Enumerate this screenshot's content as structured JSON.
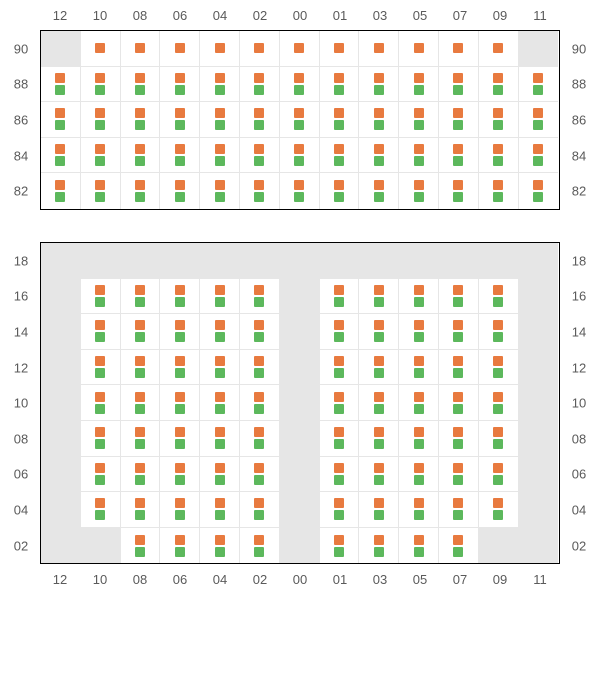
{
  "colors": {
    "orange": "#e87a3f",
    "green": "#5cb85c",
    "gray": "#e6e6e6",
    "white": "#ffffff",
    "label": "#5a5a5a"
  },
  "columnLabels": [
    "12",
    "10",
    "08",
    "06",
    "04",
    "02",
    "00",
    "01",
    "03",
    "05",
    "07",
    "09",
    "11"
  ],
  "topBlock": {
    "rowLabels": [
      "90",
      "88",
      "86",
      "84",
      "82"
    ],
    "rows": [
      [
        {
          "t": "g"
        },
        {
          "t": "w",
          "d": [
            1
          ]
        },
        {
          "t": "w",
          "d": [
            1
          ]
        },
        {
          "t": "w",
          "d": [
            1
          ]
        },
        {
          "t": "w",
          "d": [
            1
          ]
        },
        {
          "t": "w",
          "d": [
            1
          ]
        },
        {
          "t": "w",
          "d": [
            1
          ]
        },
        {
          "t": "w",
          "d": [
            1
          ]
        },
        {
          "t": "w",
          "d": [
            1
          ]
        },
        {
          "t": "w",
          "d": [
            1
          ]
        },
        {
          "t": "w",
          "d": [
            1
          ]
        },
        {
          "t": "w",
          "d": [
            1
          ]
        },
        {
          "t": "g"
        }
      ],
      [
        {
          "t": "w",
          "d": [
            1,
            2
          ]
        },
        {
          "t": "w",
          "d": [
            1,
            2
          ]
        },
        {
          "t": "w",
          "d": [
            1,
            2
          ]
        },
        {
          "t": "w",
          "d": [
            1,
            2
          ]
        },
        {
          "t": "w",
          "d": [
            1,
            2
          ]
        },
        {
          "t": "w",
          "d": [
            1,
            2
          ]
        },
        {
          "t": "w",
          "d": [
            1,
            2
          ]
        },
        {
          "t": "w",
          "d": [
            1,
            2
          ]
        },
        {
          "t": "w",
          "d": [
            1,
            2
          ]
        },
        {
          "t": "w",
          "d": [
            1,
            2
          ]
        },
        {
          "t": "w",
          "d": [
            1,
            2
          ]
        },
        {
          "t": "w",
          "d": [
            1,
            2
          ]
        },
        {
          "t": "w",
          "d": [
            1,
            2
          ]
        }
      ],
      [
        {
          "t": "w",
          "d": [
            1,
            2
          ]
        },
        {
          "t": "w",
          "d": [
            1,
            2
          ]
        },
        {
          "t": "w",
          "d": [
            1,
            2
          ]
        },
        {
          "t": "w",
          "d": [
            1,
            2
          ]
        },
        {
          "t": "w",
          "d": [
            1,
            2
          ]
        },
        {
          "t": "w",
          "d": [
            1,
            2
          ]
        },
        {
          "t": "w",
          "d": [
            1,
            2
          ]
        },
        {
          "t": "w",
          "d": [
            1,
            2
          ]
        },
        {
          "t": "w",
          "d": [
            1,
            2
          ]
        },
        {
          "t": "w",
          "d": [
            1,
            2
          ]
        },
        {
          "t": "w",
          "d": [
            1,
            2
          ]
        },
        {
          "t": "w",
          "d": [
            1,
            2
          ]
        },
        {
          "t": "w",
          "d": [
            1,
            2
          ]
        }
      ],
      [
        {
          "t": "w",
          "d": [
            1,
            2
          ]
        },
        {
          "t": "w",
          "d": [
            1,
            2
          ]
        },
        {
          "t": "w",
          "d": [
            1,
            2
          ]
        },
        {
          "t": "w",
          "d": [
            1,
            2
          ]
        },
        {
          "t": "w",
          "d": [
            1,
            2
          ]
        },
        {
          "t": "w",
          "d": [
            1,
            2
          ]
        },
        {
          "t": "w",
          "d": [
            1,
            2
          ]
        },
        {
          "t": "w",
          "d": [
            1,
            2
          ]
        },
        {
          "t": "w",
          "d": [
            1,
            2
          ]
        },
        {
          "t": "w",
          "d": [
            1,
            2
          ]
        },
        {
          "t": "w",
          "d": [
            1,
            2
          ]
        },
        {
          "t": "w",
          "d": [
            1,
            2
          ]
        },
        {
          "t": "w",
          "d": [
            1,
            2
          ]
        }
      ],
      [
        {
          "t": "w",
          "d": [
            1,
            2
          ]
        },
        {
          "t": "w",
          "d": [
            1,
            2
          ]
        },
        {
          "t": "w",
          "d": [
            1,
            2
          ]
        },
        {
          "t": "w",
          "d": [
            1,
            2
          ]
        },
        {
          "t": "w",
          "d": [
            1,
            2
          ]
        },
        {
          "t": "w",
          "d": [
            1,
            2
          ]
        },
        {
          "t": "w",
          "d": [
            1,
            2
          ]
        },
        {
          "t": "w",
          "d": [
            1,
            2
          ]
        },
        {
          "t": "w",
          "d": [
            1,
            2
          ]
        },
        {
          "t": "w",
          "d": [
            1,
            2
          ]
        },
        {
          "t": "w",
          "d": [
            1,
            2
          ]
        },
        {
          "t": "w",
          "d": [
            1,
            2
          ]
        },
        {
          "t": "w",
          "d": [
            1,
            2
          ]
        }
      ]
    ]
  },
  "bottomBlock": {
    "rowLabels": [
      "18",
      "16",
      "14",
      "12",
      "10",
      "08",
      "06",
      "04",
      "02"
    ],
    "rows": [
      [
        {
          "t": "g"
        },
        {
          "t": "g"
        },
        {
          "t": "g"
        },
        {
          "t": "g"
        },
        {
          "t": "g"
        },
        {
          "t": "g"
        },
        {
          "t": "g"
        },
        {
          "t": "g"
        },
        {
          "t": "g"
        },
        {
          "t": "g"
        },
        {
          "t": "g"
        },
        {
          "t": "g"
        },
        {
          "t": "g"
        }
      ],
      [
        {
          "t": "g"
        },
        {
          "t": "w",
          "d": [
            1,
            2
          ]
        },
        {
          "t": "w",
          "d": [
            1,
            2
          ]
        },
        {
          "t": "w",
          "d": [
            1,
            2
          ]
        },
        {
          "t": "w",
          "d": [
            1,
            2
          ]
        },
        {
          "t": "w",
          "d": [
            1,
            2
          ]
        },
        {
          "t": "g"
        },
        {
          "t": "w",
          "d": [
            1,
            2
          ]
        },
        {
          "t": "w",
          "d": [
            1,
            2
          ]
        },
        {
          "t": "w",
          "d": [
            1,
            2
          ]
        },
        {
          "t": "w",
          "d": [
            1,
            2
          ]
        },
        {
          "t": "w",
          "d": [
            1,
            2
          ]
        },
        {
          "t": "g"
        }
      ],
      [
        {
          "t": "g"
        },
        {
          "t": "w",
          "d": [
            1,
            2
          ]
        },
        {
          "t": "w",
          "d": [
            1,
            2
          ]
        },
        {
          "t": "w",
          "d": [
            1,
            2
          ]
        },
        {
          "t": "w",
          "d": [
            1,
            2
          ]
        },
        {
          "t": "w",
          "d": [
            1,
            2
          ]
        },
        {
          "t": "g"
        },
        {
          "t": "w",
          "d": [
            1,
            2
          ]
        },
        {
          "t": "w",
          "d": [
            1,
            2
          ]
        },
        {
          "t": "w",
          "d": [
            1,
            2
          ]
        },
        {
          "t": "w",
          "d": [
            1,
            2
          ]
        },
        {
          "t": "w",
          "d": [
            1,
            2
          ]
        },
        {
          "t": "g"
        }
      ],
      [
        {
          "t": "g"
        },
        {
          "t": "w",
          "d": [
            1,
            2
          ]
        },
        {
          "t": "w",
          "d": [
            1,
            2
          ]
        },
        {
          "t": "w",
          "d": [
            1,
            2
          ]
        },
        {
          "t": "w",
          "d": [
            1,
            2
          ]
        },
        {
          "t": "w",
          "d": [
            1,
            2
          ]
        },
        {
          "t": "g"
        },
        {
          "t": "w",
          "d": [
            1,
            2
          ]
        },
        {
          "t": "w",
          "d": [
            1,
            2
          ]
        },
        {
          "t": "w",
          "d": [
            1,
            2
          ]
        },
        {
          "t": "w",
          "d": [
            1,
            2
          ]
        },
        {
          "t": "w",
          "d": [
            1,
            2
          ]
        },
        {
          "t": "g"
        }
      ],
      [
        {
          "t": "g"
        },
        {
          "t": "w",
          "d": [
            1,
            2
          ]
        },
        {
          "t": "w",
          "d": [
            1,
            2
          ]
        },
        {
          "t": "w",
          "d": [
            1,
            2
          ]
        },
        {
          "t": "w",
          "d": [
            1,
            2
          ]
        },
        {
          "t": "w",
          "d": [
            1,
            2
          ]
        },
        {
          "t": "g"
        },
        {
          "t": "w",
          "d": [
            1,
            2
          ]
        },
        {
          "t": "w",
          "d": [
            1,
            2
          ]
        },
        {
          "t": "w",
          "d": [
            1,
            2
          ]
        },
        {
          "t": "w",
          "d": [
            1,
            2
          ]
        },
        {
          "t": "w",
          "d": [
            1,
            2
          ]
        },
        {
          "t": "g"
        }
      ],
      [
        {
          "t": "g"
        },
        {
          "t": "w",
          "d": [
            1,
            2
          ]
        },
        {
          "t": "w",
          "d": [
            1,
            2
          ]
        },
        {
          "t": "w",
          "d": [
            1,
            2
          ]
        },
        {
          "t": "w",
          "d": [
            1,
            2
          ]
        },
        {
          "t": "w",
          "d": [
            1,
            2
          ]
        },
        {
          "t": "g"
        },
        {
          "t": "w",
          "d": [
            1,
            2
          ]
        },
        {
          "t": "w",
          "d": [
            1,
            2
          ]
        },
        {
          "t": "w",
          "d": [
            1,
            2
          ]
        },
        {
          "t": "w",
          "d": [
            1,
            2
          ]
        },
        {
          "t": "w",
          "d": [
            1,
            2
          ]
        },
        {
          "t": "g"
        }
      ],
      [
        {
          "t": "g"
        },
        {
          "t": "w",
          "d": [
            1,
            2
          ]
        },
        {
          "t": "w",
          "d": [
            1,
            2
          ]
        },
        {
          "t": "w",
          "d": [
            1,
            2
          ]
        },
        {
          "t": "w",
          "d": [
            1,
            2
          ]
        },
        {
          "t": "w",
          "d": [
            1,
            2
          ]
        },
        {
          "t": "g"
        },
        {
          "t": "w",
          "d": [
            1,
            2
          ]
        },
        {
          "t": "w",
          "d": [
            1,
            2
          ]
        },
        {
          "t": "w",
          "d": [
            1,
            2
          ]
        },
        {
          "t": "w",
          "d": [
            1,
            2
          ]
        },
        {
          "t": "w",
          "d": [
            1,
            2
          ]
        },
        {
          "t": "g"
        }
      ],
      [
        {
          "t": "g"
        },
        {
          "t": "w",
          "d": [
            1,
            2
          ]
        },
        {
          "t": "w",
          "d": [
            1,
            2
          ]
        },
        {
          "t": "w",
          "d": [
            1,
            2
          ]
        },
        {
          "t": "w",
          "d": [
            1,
            2
          ]
        },
        {
          "t": "w",
          "d": [
            1,
            2
          ]
        },
        {
          "t": "g"
        },
        {
          "t": "w",
          "d": [
            1,
            2
          ]
        },
        {
          "t": "w",
          "d": [
            1,
            2
          ]
        },
        {
          "t": "w",
          "d": [
            1,
            2
          ]
        },
        {
          "t": "w",
          "d": [
            1,
            2
          ]
        },
        {
          "t": "w",
          "d": [
            1,
            2
          ]
        },
        {
          "t": "g"
        }
      ],
      [
        {
          "t": "g"
        },
        {
          "t": "g"
        },
        {
          "t": "w",
          "d": [
            1,
            2
          ]
        },
        {
          "t": "w",
          "d": [
            1,
            2
          ]
        },
        {
          "t": "w",
          "d": [
            1,
            2
          ]
        },
        {
          "t": "w",
          "d": [
            1,
            2
          ]
        },
        {
          "t": "g"
        },
        {
          "t": "w",
          "d": [
            1,
            2
          ]
        },
        {
          "t": "w",
          "d": [
            1,
            2
          ]
        },
        {
          "t": "w",
          "d": [
            1,
            2
          ]
        },
        {
          "t": "w",
          "d": [
            1,
            2
          ]
        },
        {
          "t": "g"
        },
        {
          "t": "g"
        }
      ]
    ]
  }
}
